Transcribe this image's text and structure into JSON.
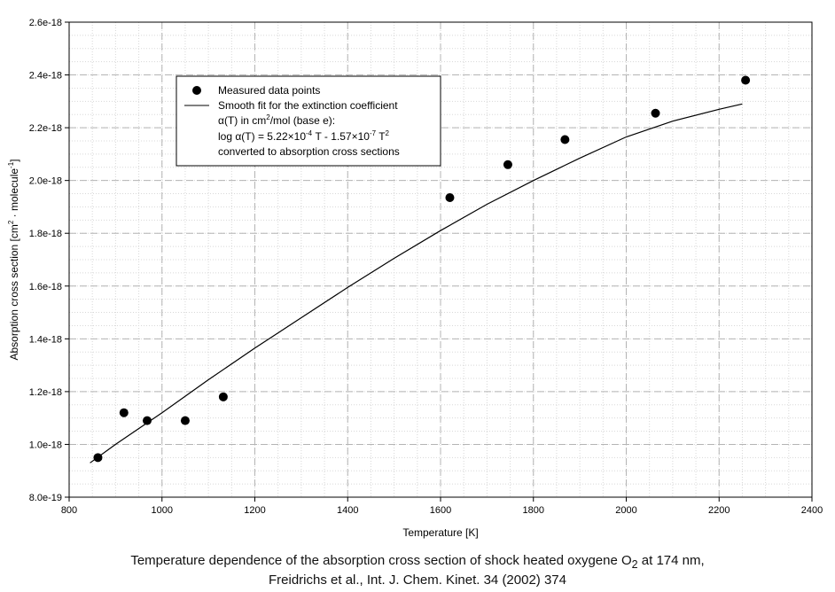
{
  "chart_data": {
    "type": "scatter",
    "xlabel": "Temperature [K]",
    "ylabel": {
      "prefix": "Absorption cross section [cm",
      "sup1": "2",
      "middle": " · molecule",
      "sup2": "-1",
      "suffix": "]"
    },
    "xlim": [
      800,
      2400
    ],
    "ylim": [
      8e-19,
      2.6e-18
    ],
    "x_ticks": [
      800,
      1000,
      1200,
      1400,
      1600,
      1800,
      2000,
      2200,
      2400
    ],
    "x_tick_labels": [
      "800",
      "1000",
      "1200",
      "1400",
      "1600",
      "1800",
      "2000",
      "2200",
      "2400"
    ],
    "y_ticks": [
      8e-19,
      1e-18,
      1.2e-18,
      1.4e-18,
      1.6e-18,
      1.8e-18,
      2e-18,
      2.2e-18,
      2.4e-18,
      2.6e-18
    ],
    "y_tick_labels": [
      "8.0e-19",
      "1.0e-18",
      "1.2e-18",
      "1.4e-18",
      "1.6e-18",
      "1.8e-18",
      "2.0e-18",
      "2.2e-18",
      "2.4e-18",
      "2.6e-18"
    ],
    "grid": true,
    "legend_position": "top-left",
    "series": [
      {
        "kind": "points",
        "x": [
          862,
          918,
          968,
          1050,
          1132,
          1620,
          1745,
          1868,
          2063,
          2257
        ],
        "y": [
          9.5e-19,
          1.12e-18,
          1.09e-18,
          1.09e-18,
          1.18e-18,
          1.935e-18,
          2.06e-18,
          2.155e-18,
          2.255e-18,
          2.38e-18
        ],
        "color": "#000000"
      },
      {
        "kind": "line",
        "x": [
          845,
          900,
          1000,
          1100,
          1200,
          1300,
          1400,
          1500,
          1600,
          1700,
          1800,
          1900,
          2000,
          2100,
          2200,
          2250
        ],
        "y": [
          9.3e-19,
          1e-18,
          1.12e-18,
          1.245e-18,
          1.365e-18,
          1.48e-18,
          1.595e-18,
          1.705e-18,
          1.81e-18,
          1.91e-18,
          2e-18,
          2.085e-18,
          2.165e-18,
          2.225e-18,
          2.27e-18,
          2.29e-18
        ],
        "color": "#000000"
      }
    ],
    "legend": {
      "points_label": "Measured data points",
      "line_label_1": "Smooth fit for the extinction coefficient",
      "line_label_2a": "α(T) in cm",
      "line_label_2_sup": "2",
      "line_label_2b": "/mol (base e):",
      "line_label_3a": "log α(T) = 5.22×10",
      "line_label_3_sup1": "-4",
      "line_label_3b": " T - 1.57×10",
      "line_label_3_sup2": "-7",
      "line_label_3c": " T",
      "line_label_3_sup3": "2",
      "line_label_4": "converted to absorption cross sections"
    }
  },
  "caption": {
    "line1_prefix": "Temperature dependence of the absorption cross section of shock heated oxygene O",
    "line1_sub": "2",
    "line1_suffix": " at 174 nm,",
    "line2": "Freidrichs et al., Int. J. Chem. Kinet. 34 (2002) 374"
  }
}
